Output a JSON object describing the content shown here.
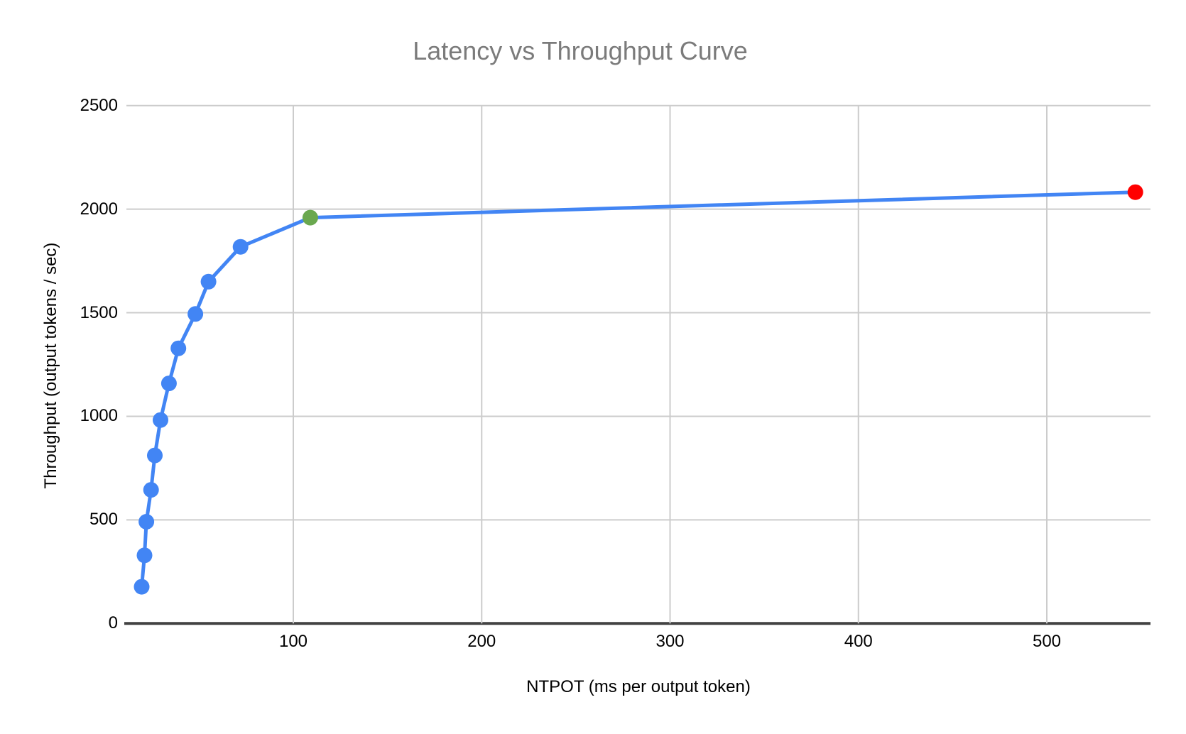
{
  "chart": {
    "title": "Latency vs Throughput Curve",
    "x_axis_title": "NTPOT (ms per output token)",
    "y_axis_title": "Throughput (output tokens / sec)"
  },
  "chart_data": {
    "type": "line",
    "title": "Latency vs Throughput Curve",
    "xlabel": "NTPOT (ms per output token)",
    "ylabel": "Throughput (output tokens / sec)",
    "xlim": [
      10,
      555
    ],
    "ylim": [
      0,
      2500
    ],
    "x_ticks": [
      100,
      200,
      300,
      400,
      500
    ],
    "y_ticks": [
      0,
      500,
      1000,
      1500,
      2000,
      2500
    ],
    "grid": true,
    "legend": false,
    "series": [
      {
        "name": "latency-throughput-curve",
        "line_color": "#4285F4",
        "points": [
          {
            "x": 19.5,
            "y": 177,
            "color": "#4285F4",
            "role": "normal"
          },
          {
            "x": 21,
            "y": 329,
            "color": "#4285F4",
            "role": "normal"
          },
          {
            "x": 22,
            "y": 491,
            "color": "#4285F4",
            "role": "normal"
          },
          {
            "x": 24.5,
            "y": 645,
            "color": "#4285F4",
            "role": "normal"
          },
          {
            "x": 26.5,
            "y": 811,
            "color": "#4285F4",
            "role": "normal"
          },
          {
            "x": 29.5,
            "y": 982,
            "color": "#4285F4",
            "role": "normal"
          },
          {
            "x": 34,
            "y": 1159,
            "color": "#4285F4",
            "role": "normal"
          },
          {
            "x": 39,
            "y": 1328,
            "color": "#4285F4",
            "role": "normal"
          },
          {
            "x": 48,
            "y": 1494,
            "color": "#4285F4",
            "role": "normal"
          },
          {
            "x": 55,
            "y": 1650,
            "color": "#4285F4",
            "role": "normal"
          },
          {
            "x": 72,
            "y": 1818,
            "color": "#4285F4",
            "role": "normal"
          },
          {
            "x": 109,
            "y": 1959,
            "color": "#6AA84F",
            "role": "highlight-green"
          },
          {
            "x": 547,
            "y": 2082,
            "color": "#FF0000",
            "role": "highlight-red"
          }
        ]
      }
    ]
  },
  "colors": {
    "background": "#FFFFFF",
    "title_text": "#7B7B7B",
    "axis_text": "#000000",
    "gridline": "#CCCCCC",
    "baseline": "#424242",
    "series_blue": "#4285F4",
    "highlight_green": "#6AA84F",
    "highlight_red": "#FF0000"
  }
}
